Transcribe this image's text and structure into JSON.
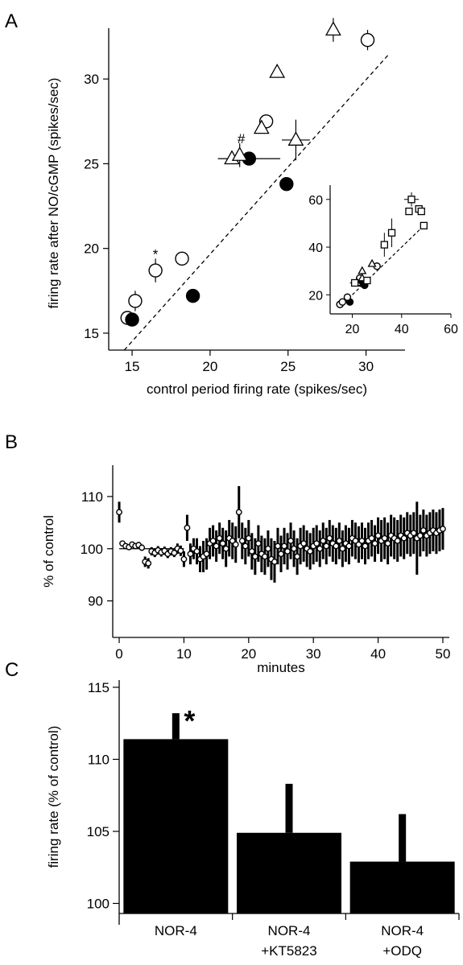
{
  "figure": {
    "panels": [
      {
        "letter": "A"
      },
      {
        "letter": "B"
      },
      {
        "letter": "C"
      }
    ]
  },
  "colors": {
    "ink": "#000000",
    "background": "#ffffff"
  },
  "chart_data": [
    {
      "id": "A",
      "type": "scatter",
      "xlabel": "control period firing rate (spikes/sec)",
      "ylabel": "firing rate after NO/cGMP (spikes/sec)",
      "xlim": [
        13.5,
        32.5
      ],
      "ylim": [
        14,
        33
      ],
      "xticks": [
        15,
        20,
        25,
        30
      ],
      "yticks": [
        15,
        20,
        25,
        30
      ],
      "grid": false,
      "reference_line": {
        "style": "dashed",
        "from": [
          14.5,
          14
        ],
        "to": [
          31.5,
          31.5
        ]
      },
      "annotations": [
        {
          "text": "*",
          "x": 16.5,
          "y": 19.4
        },
        {
          "text": "#",
          "x": 22.0,
          "y": 26.2
        }
      ],
      "series": [
        {
          "marker": "open-circle",
          "points": [
            {
              "x": 14.7,
              "y": 15.9
            },
            {
              "x": 15.2,
              "y": 16.9,
              "yerr": 0.6
            },
            {
              "x": 16.5,
              "y": 18.7,
              "yerr": 0.7
            },
            {
              "x": 18.2,
              "y": 19.4
            },
            {
              "x": 23.6,
              "y": 27.5
            },
            {
              "x": 30.1,
              "y": 32.3,
              "yerr": 0.6
            }
          ]
        },
        {
          "marker": "filled-circle",
          "points": [
            {
              "x": 15.0,
              "y": 15.8
            },
            {
              "x": 18.9,
              "y": 17.2
            },
            {
              "x": 22.5,
              "y": 25.3,
              "xerr": 2.0
            },
            {
              "x": 24.9,
              "y": 23.8
            }
          ]
        },
        {
          "marker": "open-triangle",
          "points": [
            {
              "x": 21.4,
              "y": 25.3
            },
            {
              "x": 21.9,
              "y": 25.5,
              "yerr": 0.7
            },
            {
              "x": 23.3,
              "y": 27.1
            },
            {
              "x": 24.3,
              "y": 30.4
            },
            {
              "x": 25.5,
              "y": 26.4,
              "xerr": 0.9,
              "yerr": 1.2
            },
            {
              "x": 27.9,
              "y": 32.9,
              "yerr": 0.7
            }
          ]
        }
      ],
      "inset": {
        "type": "scatter",
        "xlim": [
          11,
          60
        ],
        "ylim": [
          12,
          66
        ],
        "xticks": [
          20,
          40,
          60
        ],
        "yticks": [
          20,
          40,
          60
        ],
        "reference_line": {
          "style": "dashed",
          "from": [
            20,
            20
          ],
          "to": [
            50,
            50
          ]
        },
        "series": [
          {
            "marker": "filled-circle",
            "points": [
              {
                "x": 15,
                "y": 16
              },
              {
                "x": 19,
                "y": 17
              },
              {
                "x": 23,
                "y": 25
              },
              {
                "x": 25,
                "y": 24
              }
            ]
          },
          {
            "marker": "open-circle",
            "points": [
              {
                "x": 15,
                "y": 16
              },
              {
                "x": 16,
                "y": 17
              },
              {
                "x": 18,
                "y": 19
              },
              {
                "x": 23,
                "y": 27
              },
              {
                "x": 30,
                "y": 32
              }
            ]
          },
          {
            "marker": "open-triangle",
            "points": [
              {
                "x": 22,
                "y": 25
              },
              {
                "x": 24,
                "y": 27
              },
              {
                "x": 24,
                "y": 30
              },
              {
                "x": 28,
                "y": 33
              }
            ]
          },
          {
            "marker": "open-square",
            "points": [
              {
                "x": 21,
                "y": 25,
                "xerr": 2.0
              },
              {
                "x": 26,
                "y": 26
              },
              {
                "x": 33,
                "y": 41,
                "yerr": 5
              },
              {
                "x": 36,
                "y": 46,
                "yerr": 6
              },
              {
                "x": 43,
                "y": 55
              },
              {
                "x": 44,
                "y": 60,
                "xerr": 3,
                "yerr": 3
              },
              {
                "x": 47,
                "y": 56
              },
              {
                "x": 48,
                "y": 55
              },
              {
                "x": 49,
                "y": 49
              }
            ]
          }
        ]
      }
    },
    {
      "id": "B",
      "type": "scatter",
      "xlabel": "minutes",
      "ylabel": "% of control",
      "xlim": [
        -1,
        51
      ],
      "ylim": [
        83,
        116
      ],
      "xticks": [
        0,
        10,
        20,
        30,
        40,
        50
      ],
      "yticks": [
        90,
        100,
        110
      ],
      "grid": false,
      "marker": "open-circle",
      "reference_line": {
        "style": "solid",
        "from": [
          0,
          100
        ],
        "to": [
          10,
          100
        ]
      },
      "points": [
        {
          "x": 0.0,
          "y": 107.0,
          "err": 2.0
        },
        {
          "x": 0.5,
          "y": 101.0,
          "err": 0.5
        },
        {
          "x": 1.0,
          "y": 100.5,
          "err": 0.5
        },
        {
          "x": 1.5,
          "y": 100.3,
          "err": 0.5
        },
        {
          "x": 2.0,
          "y": 100.8,
          "err": 0.5
        },
        {
          "x": 2.5,
          "y": 100.5,
          "err": 0.5
        },
        {
          "x": 3.0,
          "y": 100.7,
          "err": 0.6
        },
        {
          "x": 3.5,
          "y": 100.2,
          "err": 0.6
        },
        {
          "x": 4.0,
          "y": 97.5,
          "err": 1.0
        },
        {
          "x": 4.5,
          "y": 97.2,
          "err": 1.0
        },
        {
          "x": 5.0,
          "y": 99.5,
          "err": 0.8
        },
        {
          "x": 5.5,
          "y": 99.2,
          "err": 0.8
        },
        {
          "x": 6.0,
          "y": 99.7,
          "err": 0.8
        },
        {
          "x": 6.5,
          "y": 99.3,
          "err": 0.8
        },
        {
          "x": 7.0,
          "y": 99.6,
          "err": 0.8
        },
        {
          "x": 7.5,
          "y": 99.0,
          "err": 0.8
        },
        {
          "x": 8.0,
          "y": 99.5,
          "err": 0.8
        },
        {
          "x": 8.5,
          "y": 99.2,
          "err": 0.8
        },
        {
          "x": 9.0,
          "y": 100.0,
          "err": 1.0
        },
        {
          "x": 9.5,
          "y": 99.6,
          "err": 1.0
        },
        {
          "x": 10.0,
          "y": 98.0,
          "err": 1.5
        },
        {
          "x": 10.5,
          "y": 104.0,
          "err": 2.5
        },
        {
          "x": 11.0,
          "y": 99.0,
          "err": 2.0
        },
        {
          "x": 11.5,
          "y": 100.0,
          "err": 2.0
        },
        {
          "x": 12.0,
          "y": 99.5,
          "err": 2.5
        },
        {
          "x": 12.5,
          "y": 98.0,
          "err": 2.5
        },
        {
          "x": 13.0,
          "y": 98.5,
          "err": 3.0
        },
        {
          "x": 13.5,
          "y": 99.0,
          "err": 3.0
        },
        {
          "x": 14.0,
          "y": 101.0,
          "err": 3.0
        },
        {
          "x": 14.5,
          "y": 101.5,
          "err": 3.0
        },
        {
          "x": 15.0,
          "y": 100.5,
          "err": 3.0
        },
        {
          "x": 15.5,
          "y": 102.0,
          "err": 3.0
        },
        {
          "x": 16.0,
          "y": 101.0,
          "err": 3.0
        },
        {
          "x": 16.5,
          "y": 100.0,
          "err": 3.5
        },
        {
          "x": 17.0,
          "y": 102.0,
          "err": 3.5
        },
        {
          "x": 17.5,
          "y": 101.5,
          "err": 3.5
        },
        {
          "x": 18.0,
          "y": 100.8,
          "err": 3.5
        },
        {
          "x": 18.5,
          "y": 107.0,
          "err": 5.0
        },
        {
          "x": 19.0,
          "y": 101.5,
          "err": 3.5
        },
        {
          "x": 19.5,
          "y": 100.5,
          "err": 3.5
        },
        {
          "x": 20.0,
          "y": 102.0,
          "err": 3.5
        },
        {
          "x": 20.5,
          "y": 99.5,
          "err": 3.5
        },
        {
          "x": 21.0,
          "y": 98.5,
          "err": 3.5
        },
        {
          "x": 21.5,
          "y": 101.0,
          "err": 3.5
        },
        {
          "x": 22.0,
          "y": 99.0,
          "err": 3.5
        },
        {
          "x": 22.5,
          "y": 98.5,
          "err": 3.5
        },
        {
          "x": 23.0,
          "y": 100.0,
          "err": 3.5
        },
        {
          "x": 23.5,
          "y": 98.0,
          "err": 4.0
        },
        {
          "x": 24.0,
          "y": 97.5,
          "err": 4.0
        },
        {
          "x": 24.5,
          "y": 100.5,
          "err": 3.5
        },
        {
          "x": 25.0,
          "y": 99.0,
          "err": 3.5
        },
        {
          "x": 25.5,
          "y": 100.5,
          "err": 3.5
        },
        {
          "x": 26.0,
          "y": 99.5,
          "err": 3.5
        },
        {
          "x": 26.5,
          "y": 101.5,
          "err": 3.5
        },
        {
          "x": 27.0,
          "y": 100.0,
          "err": 3.5
        },
        {
          "x": 27.5,
          "y": 98.5,
          "err": 3.5
        },
        {
          "x": 28.0,
          "y": 100.5,
          "err": 3.5
        },
        {
          "x": 28.5,
          "y": 101.0,
          "err": 3.5
        },
        {
          "x": 29.0,
          "y": 100.0,
          "err": 3.5
        },
        {
          "x": 29.5,
          "y": 99.5,
          "err": 3.5
        },
        {
          "x": 30.0,
          "y": 100.5,
          "err": 3.5
        },
        {
          "x": 30.5,
          "y": 101.0,
          "err": 3.5
        },
        {
          "x": 31.0,
          "y": 100.0,
          "err": 3.5
        },
        {
          "x": 31.5,
          "y": 101.5,
          "err": 3.5
        },
        {
          "x": 32.0,
          "y": 100.5,
          "err": 3.5
        },
        {
          "x": 32.5,
          "y": 102.0,
          "err": 3.5
        },
        {
          "x": 33.0,
          "y": 101.0,
          "err": 3.5
        },
        {
          "x": 33.5,
          "y": 100.5,
          "err": 3.5
        },
        {
          "x": 34.0,
          "y": 101.5,
          "err": 3.5
        },
        {
          "x": 34.5,
          "y": 100.0,
          "err": 3.5
        },
        {
          "x": 35.0,
          "y": 101.0,
          "err": 3.5
        },
        {
          "x": 35.5,
          "y": 100.5,
          "err": 3.5
        },
        {
          "x": 36.0,
          "y": 102.0,
          "err": 3.5
        },
        {
          "x": 36.5,
          "y": 101.5,
          "err": 3.5
        },
        {
          "x": 37.0,
          "y": 100.8,
          "err": 3.5
        },
        {
          "x": 37.5,
          "y": 101.5,
          "err": 3.5
        },
        {
          "x": 38.0,
          "y": 100.5,
          "err": 3.5
        },
        {
          "x": 38.5,
          "y": 101.5,
          "err": 3.5
        },
        {
          "x": 39.0,
          "y": 102.0,
          "err": 3.5
        },
        {
          "x": 39.5,
          "y": 101.0,
          "err": 3.5
        },
        {
          "x": 40.0,
          "y": 102.5,
          "err": 3.5
        },
        {
          "x": 40.5,
          "y": 101.5,
          "err": 4.0
        },
        {
          "x": 41.0,
          "y": 102.0,
          "err": 4.0
        },
        {
          "x": 41.5,
          "y": 101.0,
          "err": 4.0
        },
        {
          "x": 42.0,
          "y": 102.5,
          "err": 4.0
        },
        {
          "x": 42.5,
          "y": 102.0,
          "err": 4.0
        },
        {
          "x": 43.0,
          "y": 101.5,
          "err": 4.0
        },
        {
          "x": 43.5,
          "y": 102.5,
          "err": 4.0
        },
        {
          "x": 44.0,
          "y": 102.0,
          "err": 4.0
        },
        {
          "x": 44.5,
          "y": 103.0,
          "err": 4.0
        },
        {
          "x": 45.0,
          "y": 102.5,
          "err": 4.0
        },
        {
          "x": 45.5,
          "y": 103.0,
          "err": 4.0
        },
        {
          "x": 46.0,
          "y": 102.0,
          "err": 7.0
        },
        {
          "x": 46.5,
          "y": 102.5,
          "err": 4.0
        },
        {
          "x": 47.0,
          "y": 103.5,
          "err": 4.0
        },
        {
          "x": 47.5,
          "y": 102.5,
          "err": 4.0
        },
        {
          "x": 48.0,
          "y": 103.0,
          "err": 4.0
        },
        {
          "x": 48.5,
          "y": 103.5,
          "err": 4.0
        },
        {
          "x": 49.0,
          "y": 103.0,
          "err": 4.0
        },
        {
          "x": 49.5,
          "y": 103.5,
          "err": 4.0
        },
        {
          "x": 50.0,
          "y": 103.8,
          "err": 4.0
        }
      ]
    },
    {
      "id": "C",
      "type": "bar",
      "ylabel": "firing rate (% of control)",
      "xlabel": "",
      "ylim": [
        99.3,
        115.5
      ],
      "yticks": [
        100,
        105,
        110,
        115
      ],
      "grid": false,
      "categories": [
        {
          "line1": "NOR-4",
          "line2": ""
        },
        {
          "line1": "NOR-4",
          "line2": "+KT5823"
        },
        {
          "line1": "NOR-4",
          "line2": "+ODQ"
        }
      ],
      "values": [
        111.4,
        104.9,
        102.9
      ],
      "errors": [
        1.8,
        3.4,
        3.3
      ],
      "annotations": [
        {
          "text": "*",
          "category_index": 0
        }
      ]
    }
  ]
}
